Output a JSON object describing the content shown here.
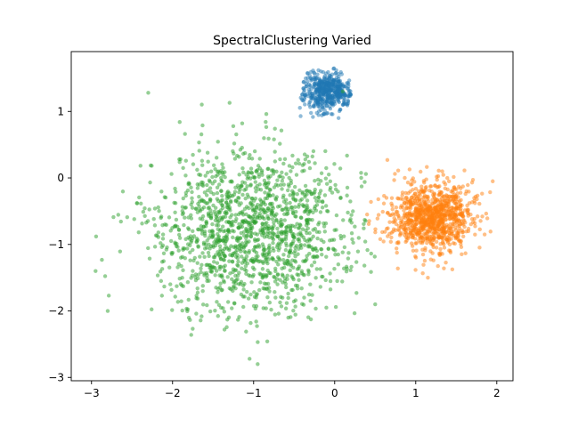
{
  "chart_data": {
    "type": "scatter",
    "title": "SpectralClustering Varied",
    "xlabel": "",
    "ylabel": "",
    "xlim": [
      -3.25,
      2.2
    ],
    "ylim": [
      -3.05,
      1.9
    ],
    "x_ticks": [
      -3,
      -2,
      -1,
      0,
      1,
      2
    ],
    "y_ticks": [
      -3,
      -2,
      -1,
      0,
      1
    ],
    "x_tick_labels": [
      "−3",
      "−2",
      "−1",
      "0",
      "1",
      "2"
    ],
    "y_tick_labels": [
      "−3",
      "−2",
      "−1",
      "0",
      "1"
    ],
    "grid": false,
    "legend": "none",
    "point_alpha": 0.5,
    "series": [
      {
        "color": "#1f77b4",
        "count": 500,
        "center": [
          -0.1,
          1.3
        ],
        "std": 0.15,
        "x_range": [
          -0.45,
          0.2
        ],
        "y_range": [
          0.9,
          1.65
        ],
        "sample_points": [
          [
            -0.1,
            1.3
          ],
          [
            -0.3,
            1.5
          ],
          [
            0.1,
            1.1
          ],
          [
            -0.42,
            0.93
          ],
          [
            0.2,
            1.25
          ],
          [
            -0.2,
            1.62
          ]
        ]
      },
      {
        "color": "#ff7f0e",
        "count": 1000,
        "center": [
          1.2,
          -0.6
        ],
        "std": 0.25,
        "x_range": [
          0.35,
          1.95
        ],
        "y_range": [
          -1.5,
          0.3
        ],
        "sample_points": [
          [
            1.2,
            -0.6
          ],
          [
            0.65,
            0.27
          ],
          [
            1.95,
            -0.05
          ],
          [
            1.85,
            -0.85
          ],
          [
            0.4,
            -0.55
          ],
          [
            1.15,
            -1.5
          ]
        ]
      },
      {
        "color": "#2ca02c",
        "count": 1500,
        "center": [
          -1.0,
          -0.8
        ],
        "std": 0.6,
        "x_range": [
          -2.95,
          0.5
        ],
        "y_range": [
          -2.8,
          1.3
        ],
        "sample_points": [
          [
            -2.95,
            -1.4
          ],
          [
            -2.8,
            -2.0
          ],
          [
            -2.3,
            1.28
          ],
          [
            -0.95,
            -2.8
          ],
          [
            0.5,
            -1.9
          ],
          [
            0.1,
            1.3
          ],
          [
            -1.05,
            -2.72
          ]
        ]
      }
    ]
  }
}
